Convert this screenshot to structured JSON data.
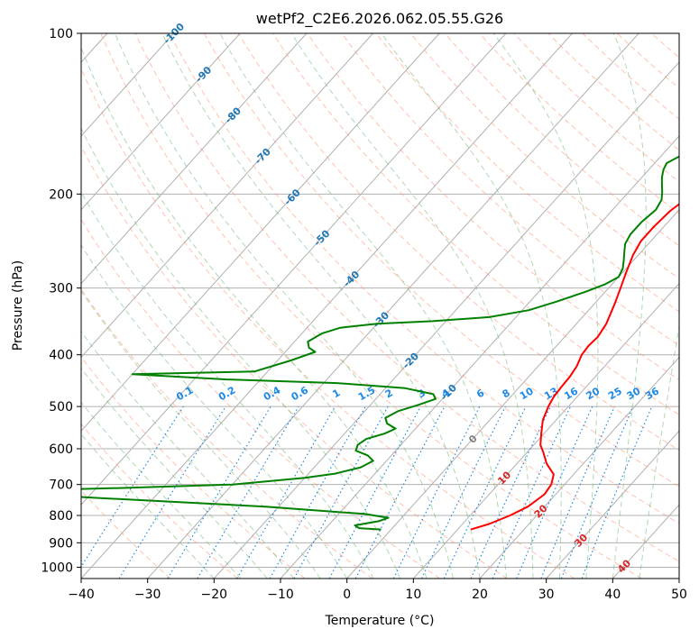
{
  "chart_data": {
    "type": "line",
    "title": "wetPf2_C2E6.2026.062.05.55.G26",
    "xlabel": "Temperature (°C)",
    "ylabel": "Pressure (hPa)",
    "xlim": [
      -40,
      50
    ],
    "ylim": [
      1050,
      100
    ],
    "y_scale": "log",
    "grid": true,
    "x_ticks": [
      -40,
      -30,
      -20,
      -10,
      0,
      10,
      20,
      30,
      40,
      50
    ],
    "y_ticks": [
      100,
      200,
      300,
      400,
      500,
      600,
      700,
      800,
      900,
      1000
    ],
    "isotherm_labels": [
      "-100",
      "-90",
      "-80",
      "-70",
      "-60",
      "-50",
      "-40",
      "-30",
      "-20",
      "-10",
      "0",
      "10",
      "20",
      "30",
      "40"
    ],
    "mixing_ratio_labels": [
      "0.1",
      "0.2",
      "0.4",
      "0.6",
      "1",
      "1.5",
      "2",
      "3",
      "4",
      "6",
      "8",
      "10",
      "13",
      "16",
      "20",
      "25",
      "30",
      "36"
    ],
    "colors": {
      "temperature": "#ff0000",
      "dewpoint": "#008000",
      "isotherm_label_cold": "#1f77b4",
      "isotherm_label_warm": "#d62728",
      "isotherm_label_zero": "#808080",
      "mixing_ratio": "#1e88e5",
      "dry_adiabat": "#ff9070",
      "moist_adiabat": "#70b870",
      "grid": "#b0b0b0"
    },
    "series": [
      {
        "key": "temperature",
        "color": "#ff0000",
        "points": [
          [
            12.0,
            850
          ],
          [
            14.0,
            830
          ],
          [
            16.0,
            800
          ],
          [
            17.5,
            770
          ],
          [
            18.3,
            730
          ],
          [
            18.0,
            700
          ],
          [
            17.0,
            670
          ],
          [
            14.5,
            640
          ],
          [
            12.5,
            610
          ],
          [
            11.0,
            590
          ],
          [
            9.5,
            560
          ],
          [
            8.0,
            530
          ],
          [
            7.0,
            500
          ],
          [
            6.5,
            480
          ],
          [
            6.3,
            460
          ],
          [
            6.2,
            440
          ],
          [
            5.8,
            420
          ],
          [
            5.0,
            400
          ],
          [
            4.8,
            385
          ],
          [
            5.0,
            370
          ],
          [
            4.5,
            350
          ],
          [
            3.0,
            320
          ],
          [
            1.8,
            300
          ],
          [
            0.5,
            280
          ],
          [
            -0.8,
            260
          ],
          [
            -1.5,
            245
          ],
          [
            -1.5,
            230
          ],
          [
            -1.2,
            215
          ],
          [
            -0.5,
            205
          ],
          [
            0.5,
            198
          ],
          [
            2.0,
            190
          ],
          [
            3.5,
            183
          ],
          [
            5.0,
            176
          ],
          [
            6.0,
            169
          ],
          [
            7.0,
            160
          ],
          [
            8.0,
            152
          ],
          [
            9.0,
            144
          ],
          [
            10.0,
            137
          ],
          [
            11.0,
            130
          ],
          [
            11.5,
            120
          ],
          [
            12.0,
            112
          ],
          [
            13.0,
            105
          ],
          [
            14.0,
            100
          ]
        ]
      },
      {
        "key": "dewpoint",
        "color": "#008000",
        "points": [
          [
            -1.5,
            850
          ],
          [
            -5.0,
            845
          ],
          [
            -6.0,
            835
          ],
          [
            -3.0,
            820
          ],
          [
            -2.0,
            808
          ],
          [
            -6.0,
            795
          ],
          [
            -22.0,
            770
          ],
          [
            -50.0,
            740
          ],
          [
            -65.0,
            720
          ],
          [
            -45.0,
            710
          ],
          [
            -30.0,
            700
          ],
          [
            -20.0,
            680
          ],
          [
            -16.0,
            668
          ],
          [
            -13.0,
            650
          ],
          [
            -12.0,
            632
          ],
          [
            -13.5,
            618
          ],
          [
            -16.0,
            605
          ],
          [
            -16.5,
            590
          ],
          [
            -16.0,
            575
          ],
          [
            -14.0,
            562
          ],
          [
            -13.0,
            550
          ],
          [
            -15.0,
            538
          ],
          [
            -16.0,
            525
          ],
          [
            -15.0,
            510
          ],
          [
            -13.0,
            498
          ],
          [
            -11.0,
            484
          ],
          [
            -12.0,
            474
          ],
          [
            -17.0,
            462
          ],
          [
            -28.0,
            452
          ],
          [
            -45.0,
            445
          ],
          [
            -60.0,
            435
          ],
          [
            -42.0,
            430
          ],
          [
            -38.0,
            410
          ],
          [
            -35.5,
            395
          ],
          [
            -37.0,
            388
          ],
          [
            -38.0,
            378
          ],
          [
            -37.0,
            365
          ],
          [
            -35.0,
            356
          ],
          [
            -30.0,
            350
          ],
          [
            -22.0,
            346
          ],
          [
            -14.0,
            340
          ],
          [
            -9.0,
            330
          ],
          [
            -6.0,
            318
          ],
          [
            -3.0,
            305
          ],
          [
            -1.0,
            295
          ],
          [
            0.0,
            286
          ],
          [
            -0.5,
            276
          ],
          [
            -1.5,
            266
          ],
          [
            -2.5,
            257
          ],
          [
            -3.5,
            248
          ],
          [
            -4.0,
            238
          ],
          [
            -4.0,
            226
          ],
          [
            -3.5,
            214
          ],
          [
            -4.0,
            205
          ],
          [
            -5.0,
            198
          ],
          [
            -6.0,
            192
          ],
          [
            -7.0,
            186
          ],
          [
            -7.8,
            180
          ],
          [
            -8.2,
            175
          ],
          [
            -7.2,
            170
          ],
          [
            -5.5,
            165
          ],
          [
            -5.0,
            160
          ],
          [
            -5.5,
            154
          ],
          [
            -6.5,
            150
          ],
          [
            -6.8,
            146
          ],
          [
            -6.0,
            141
          ],
          [
            -4.0,
            136
          ],
          [
            -2.0,
            130
          ],
          [
            0.0,
            124
          ],
          [
            1.5,
            117
          ],
          [
            2.5,
            110
          ],
          [
            3.0,
            104
          ],
          [
            3.5,
            100
          ]
        ]
      }
    ]
  }
}
